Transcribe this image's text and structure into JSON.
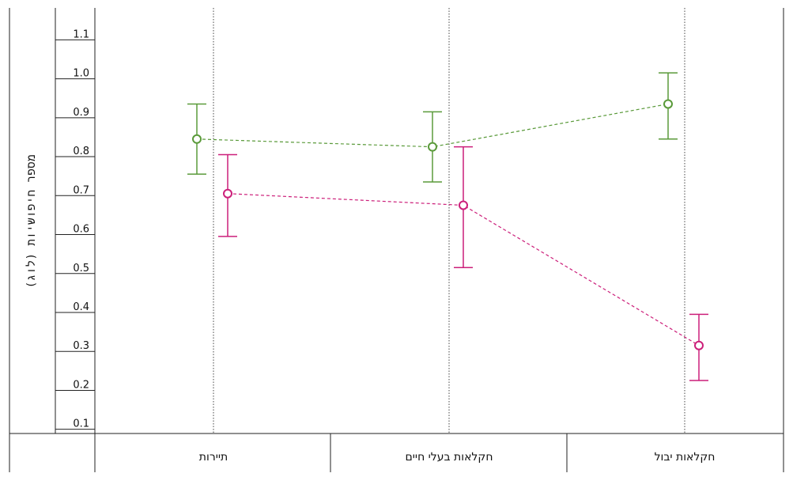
{
  "chart_data": {
    "type": "line",
    "ylabel": "מספר חיפושיות (לוג)",
    "xlabel": "",
    "ylim": [
      0.05,
      1.2
    ],
    "yticks": [
      0.1,
      0.2,
      0.3,
      0.4,
      0.5,
      0.6,
      0.7,
      0.8,
      0.9,
      1.0,
      1.1
    ],
    "ytick_labels": [
      "0.1",
      "0.2",
      "0.3",
      "0.4",
      "0.5",
      "0.6",
      "0.7",
      "0.8",
      "0.9",
      "1.0",
      "1.1"
    ],
    "categories": [
      "תיירות",
      "חקלאות בעלי חיים",
      "חקלאות יבול"
    ],
    "series": [
      {
        "color": "#5a9a3a",
        "line_style": "dashed",
        "marker": "open-circle",
        "values": [
          0.83,
          0.81,
          0.92
        ],
        "error_low": [
          0.74,
          0.72,
          0.83
        ],
        "error_high": [
          0.92,
          0.9,
          1.0
        ]
      },
      {
        "color": "#cc1f7a",
        "line_style": "dashed",
        "marker": "open-circle",
        "values": [
          0.69,
          0.66,
          0.3
        ],
        "error_low": [
          0.58,
          0.5,
          0.21
        ],
        "error_high": [
          0.79,
          0.81,
          0.38
        ]
      }
    ],
    "grid": "dotted vertical lines at category centers",
    "legend": "none"
  }
}
